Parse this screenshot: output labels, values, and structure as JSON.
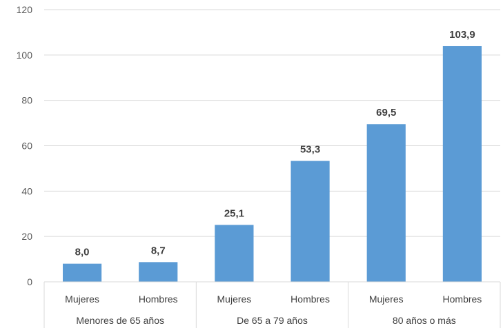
{
  "chart_data": {
    "type": "bar",
    "ylim": [
      0,
      120
    ],
    "yticks": [
      0,
      20,
      40,
      60,
      80,
      100,
      120
    ],
    "grid": true,
    "bar_color": "#5B9BD5",
    "groups": [
      {
        "label": "Menores de 65 años",
        "categories": [
          "Mujeres",
          "Hombres"
        ],
        "values": [
          8.0,
          8.7
        ],
        "value_labels": [
          "8,0",
          "8,7"
        ]
      },
      {
        "label": "De 65 a 79 años",
        "categories": [
          "Mujeres",
          "Hombres"
        ],
        "values": [
          25.1,
          53.3
        ],
        "value_labels": [
          "25,1",
          "53,3"
        ]
      },
      {
        "label": "80 años o más",
        "categories": [
          "Mujeres",
          "Hombres"
        ],
        "values": [
          69.5,
          103.9
        ],
        "value_labels": [
          "69,5",
          "103,9"
        ]
      }
    ]
  }
}
